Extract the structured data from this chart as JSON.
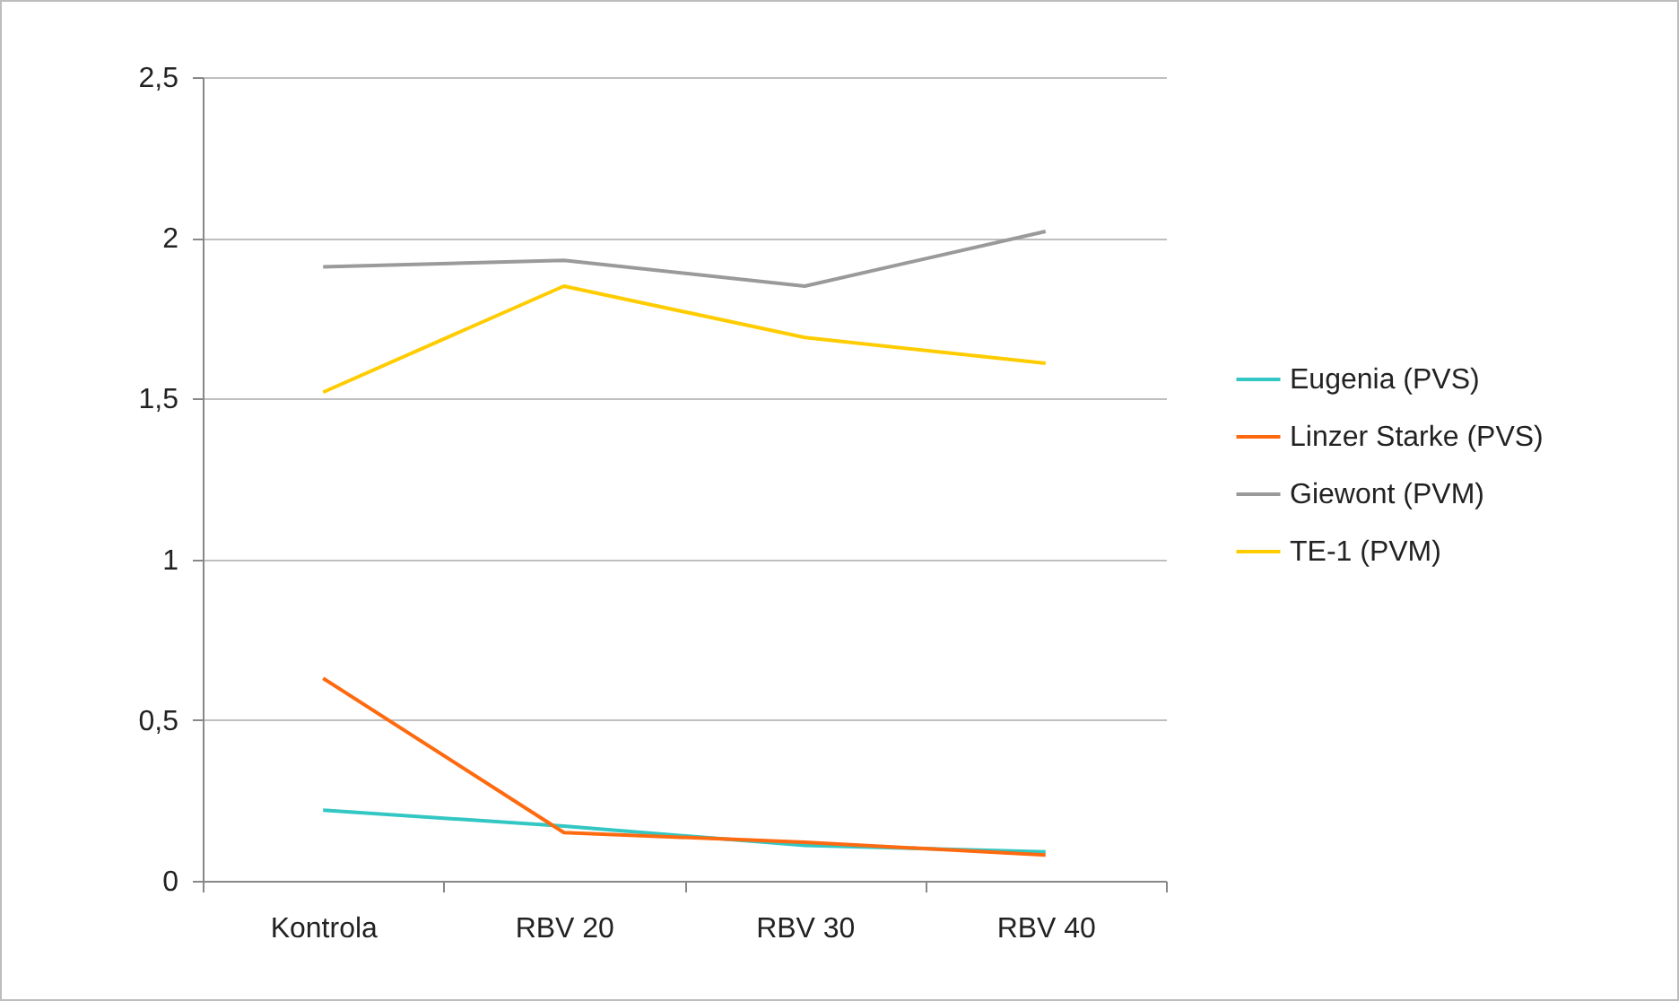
{
  "chart_data": {
    "type": "line",
    "categories": [
      "Kontrola",
      "RBV 20",
      "RBV 30",
      "RBV 40"
    ],
    "series": [
      {
        "name": "Eugenia (PVS)",
        "color": "#33c7c3",
        "values": [
          0.22,
          0.17,
          0.11,
          0.09
        ]
      },
      {
        "name": "Linzer Starke (PVS)",
        "color": "#ff6a10",
        "values": [
          0.63,
          0.15,
          0.12,
          0.08
        ]
      },
      {
        "name": "Giewont (PVM)",
        "color": "#9a9a9a",
        "values": [
          1.91,
          1.93,
          1.85,
          2.02
        ]
      },
      {
        "name": "TE-1 (PVM)",
        "color": "#ffcc00",
        "values": [
          1.52,
          1.85,
          1.69,
          1.61
        ]
      }
    ],
    "ylim": [
      0,
      2.5
    ],
    "yticks": [
      {
        "value": 0,
        "label": "0"
      },
      {
        "value": 0.5,
        "label": "0,5"
      },
      {
        "value": 1,
        "label": "1"
      },
      {
        "value": 1.5,
        "label": "1,5"
      },
      {
        "value": 2,
        "label": "2"
      },
      {
        "value": 2.5,
        "label": "2,5"
      }
    ],
    "grid": "y",
    "legend": "right",
    "marker": "none",
    "line_style": "solid"
  }
}
